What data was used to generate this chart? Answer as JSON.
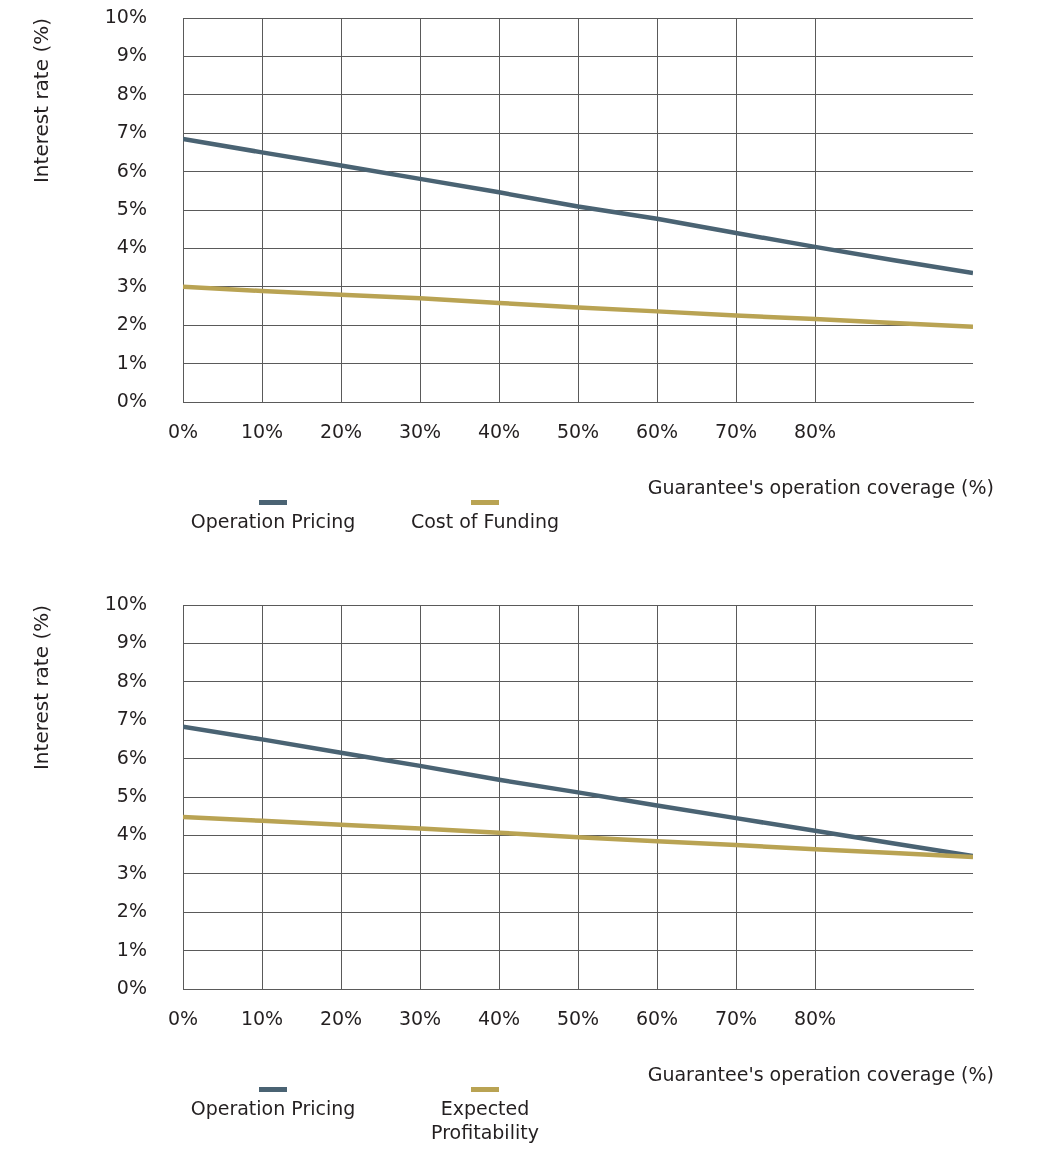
{
  "chart_data": [
    {
      "type": "line",
      "ylabel": "Interest rate (%)",
      "xlabel": "Guarantee's operation coverage (%)",
      "x": [
        0,
        10,
        20,
        30,
        40,
        50,
        60,
        70,
        80,
        90,
        100
      ],
      "series": [
        {
          "name": "Operation Pricing",
          "color": "#4a6373",
          "values": [
            6.85,
            6.5,
            6.16,
            5.81,
            5.46,
            5.09,
            4.77,
            4.4,
            4.04,
            3.69,
            3.36
          ]
        },
        {
          "name": "Cost of Funding",
          "color": "#b9a353",
          "values": [
            3.0,
            2.89,
            2.79,
            2.7,
            2.58,
            2.46,
            2.36,
            2.25,
            2.16,
            2.06,
            1.96
          ]
        }
      ],
      "xlim": [
        0,
        100
      ],
      "xticks": [
        {
          "value": 0,
          "label": "0%"
        },
        {
          "value": 10,
          "label": "10%"
        },
        {
          "value": 20,
          "label": "20%"
        },
        {
          "value": 30,
          "label": "30%"
        },
        {
          "value": 40,
          "label": "40%"
        },
        {
          "value": 50,
          "label": "50%"
        },
        {
          "value": 60,
          "label": "60%"
        },
        {
          "value": 70,
          "label": "70%"
        },
        {
          "value": 80,
          "label": "80%"
        }
      ],
      "ylim": [
        0,
        10
      ],
      "yticks": [
        {
          "value": 0,
          "label": "0%"
        },
        {
          "value": 1,
          "label": "1%"
        },
        {
          "value": 2,
          "label": "2%"
        },
        {
          "value": 3,
          "label": "3%"
        },
        {
          "value": 4,
          "label": "4%"
        },
        {
          "value": 5,
          "label": "5%"
        },
        {
          "value": 6,
          "label": "6%"
        },
        {
          "value": 7,
          "label": "7%"
        },
        {
          "value": 8,
          "label": "8%"
        },
        {
          "value": 9,
          "label": "9%"
        },
        {
          "value": 10,
          "label": "10%"
        }
      ],
      "grid": true,
      "legend": "bottom"
    },
    {
      "type": "line",
      "ylabel": "Interest rate (%)",
      "xlabel": "Guarantee's operation coverage (%)",
      "x": [
        0,
        10,
        20,
        30,
        40,
        50,
        60,
        70,
        80,
        90,
        100
      ],
      "series": [
        {
          "name": "Operation Pricing",
          "color": "#4a6373",
          "values": [
            6.83,
            6.5,
            6.15,
            5.81,
            5.45,
            5.12,
            4.78,
            4.45,
            4.12,
            3.79,
            3.46
          ]
        },
        {
          "name": "Expected Profitability",
          "color": "#b9a353",
          "values": [
            4.48,
            4.38,
            4.28,
            4.18,
            4.07,
            3.95,
            3.85,
            3.75,
            3.64,
            3.54,
            3.44
          ]
        }
      ],
      "xlim": [
        0,
        100
      ],
      "xticks": [
        {
          "value": 0,
          "label": "0%"
        },
        {
          "value": 10,
          "label": "10%"
        },
        {
          "value": 20,
          "label": "20%"
        },
        {
          "value": 30,
          "label": "30%"
        },
        {
          "value": 40,
          "label": "40%"
        },
        {
          "value": 50,
          "label": "50%"
        },
        {
          "value": 60,
          "label": "60%"
        },
        {
          "value": 70,
          "label": "70%"
        },
        {
          "value": 80,
          "label": "80%"
        }
      ],
      "ylim": [
        0,
        10
      ],
      "yticks": [
        {
          "value": 0,
          "label": "0%"
        },
        {
          "value": 1,
          "label": "1%"
        },
        {
          "value": 2,
          "label": "2%"
        },
        {
          "value": 3,
          "label": "3%"
        },
        {
          "value": 4,
          "label": "4%"
        },
        {
          "value": 5,
          "label": "5%"
        },
        {
          "value": 6,
          "label": "6%"
        },
        {
          "value": 7,
          "label": "7%"
        },
        {
          "value": 8,
          "label": "8%"
        },
        {
          "value": 9,
          "label": "9%"
        },
        {
          "value": 10,
          "label": "10%"
        }
      ],
      "grid": true,
      "legend": "bottom"
    }
  ]
}
